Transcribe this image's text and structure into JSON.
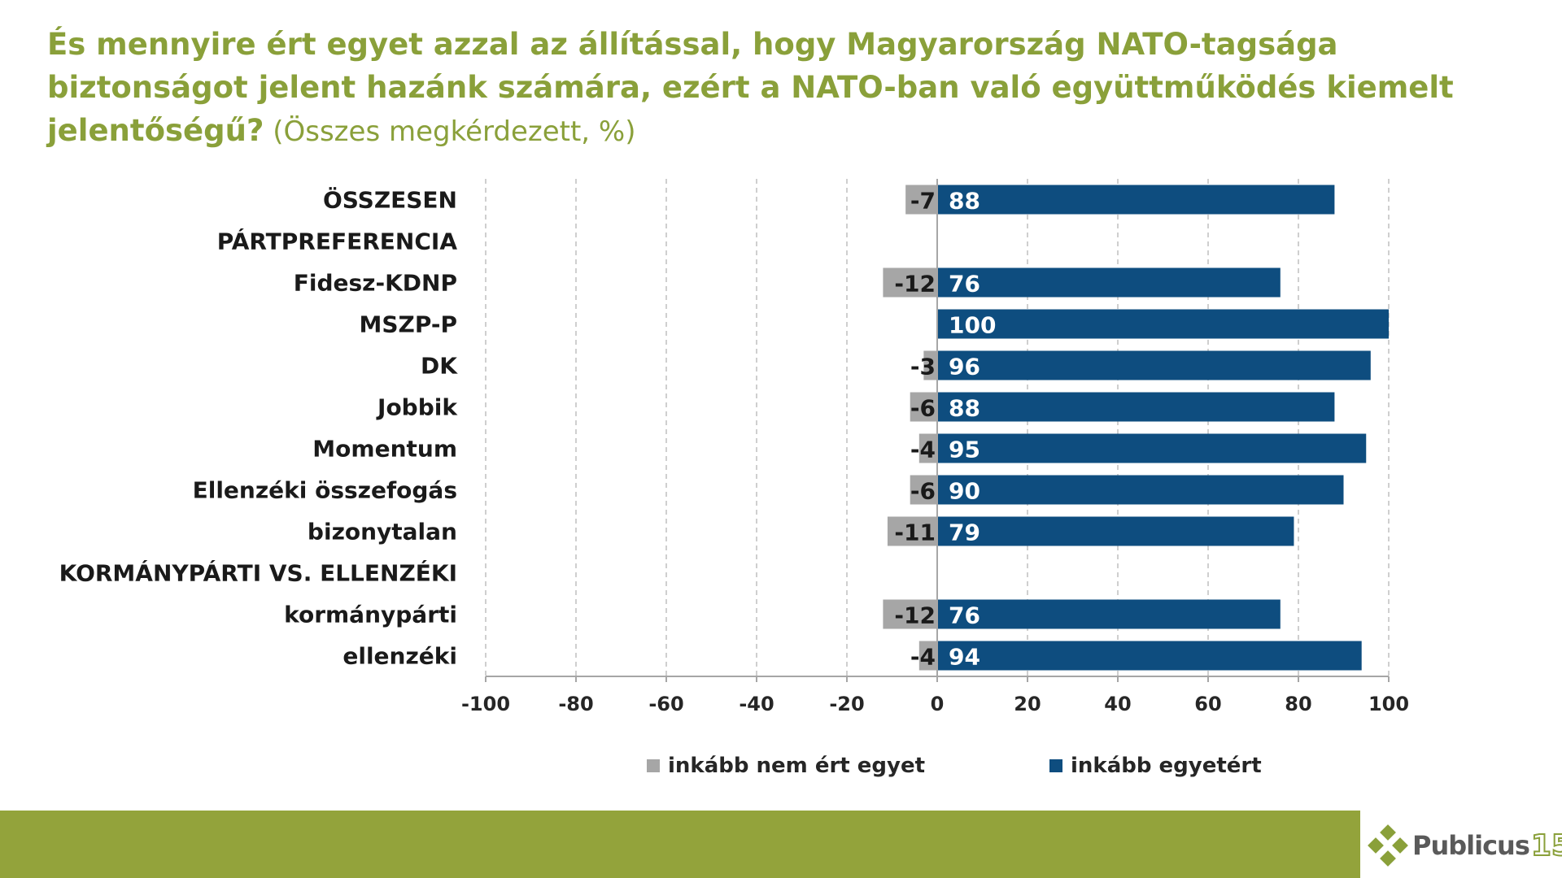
{
  "header": {
    "title_bold": "És mennyire ért egyet azzal az állítással, hogy Magyarország NATO-tagsága biztonságot jelent hazánk számára, ezért a NATO-ban való együttműködés kiemelt jelentőségű?",
    "title_rest": " (Összes megkérdezett, %)"
  },
  "chart_data": {
    "type": "bar",
    "orientation": "horizontal",
    "stacked": "diverging",
    "categories": [
      "ÖSSZESEN",
      "PÁRTPREFERENCIA",
      "Fidesz-KDNP",
      "MSZP-P",
      "DK",
      "Jobbik",
      "Momentum",
      "Ellenzéki összefogás",
      "bizonytalan",
      "KORMÁNYPÁRTI VS. ELLENZÉKI",
      "kormánypárti",
      "ellenzéki"
    ],
    "series": [
      {
        "name": "inkább nem ért egyet",
        "color": "#a6a6a6",
        "values": [
          -7,
          null,
          -12,
          null,
          -3,
          -6,
          -4,
          -6,
          -11,
          null,
          -12,
          -4
        ]
      },
      {
        "name": "inkább egyetért",
        "color": "#0e4d7f",
        "values": [
          88,
          null,
          76,
          100,
          96,
          88,
          95,
          90,
          79,
          null,
          76,
          94
        ]
      }
    ],
    "xlim": [
      -100,
      100
    ],
    "xticks": [
      -100,
      -80,
      -60,
      -40,
      -20,
      0,
      20,
      40,
      60,
      80,
      100
    ],
    "grid": "vertical dashed",
    "legend": "bottom"
  },
  "legend_items": [
    {
      "label": "inkább nem ért egyet",
      "color": "#a6a6a6"
    },
    {
      "label": "inkább egyetért",
      "color": "#0e4d7f"
    }
  ],
  "brand": {
    "name": "Publicus",
    "number": "15",
    "accent": "#93a33b"
  }
}
